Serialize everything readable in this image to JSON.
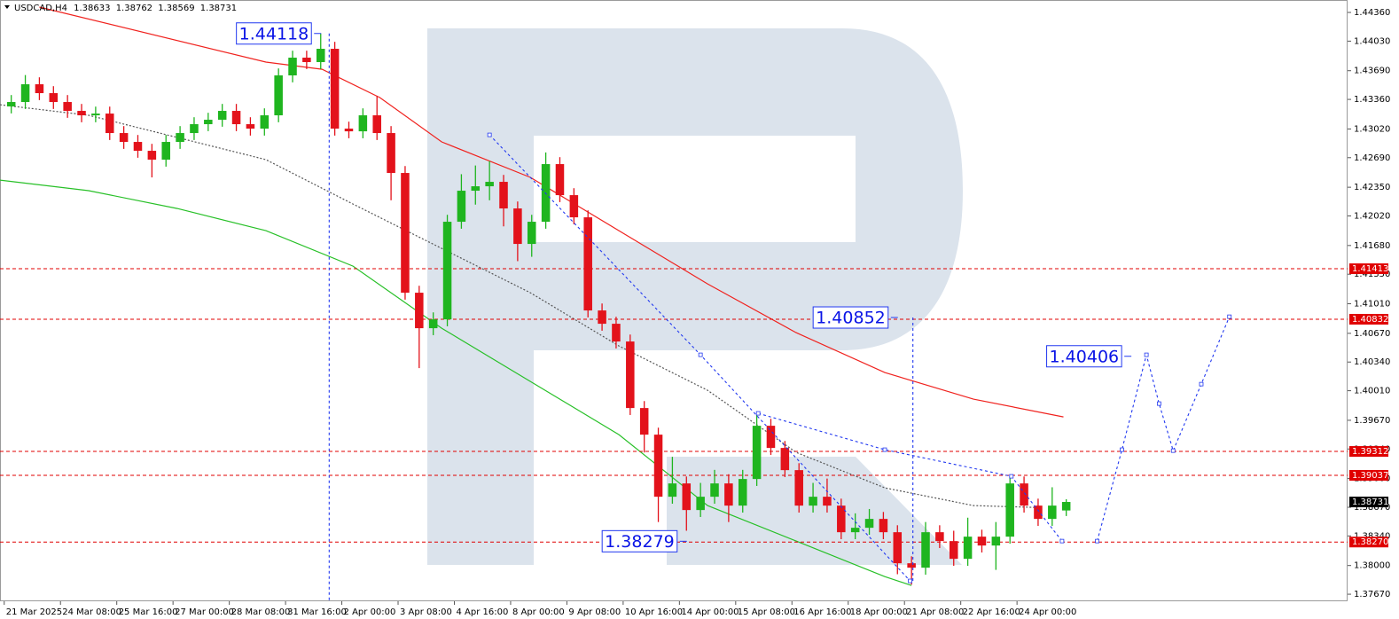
{
  "chart_data": {
    "type": "candlestick",
    "symbol": "USDCAD,H4",
    "header_values": [
      1.38633,
      1.38762,
      1.38569,
      1.38731
    ],
    "up_color": "#1fb51f",
    "down_color": "#e3121b",
    "open": [
      1.43279,
      1.4333,
      1.43534,
      1.43432,
      1.4333,
      1.43228,
      1.43177,
      1.43197,
      1.42973,
      1.42871,
      1.42769,
      1.42667,
      1.42871,
      1.42973,
      1.43075,
      1.43126,
      1.43228,
      1.43075,
      1.43024,
      1.43177,
      1.43636,
      1.4384,
      1.43789,
      1.43942,
      1.43024,
      1.42993,
      1.43177,
      1.42973,
      1.42514,
      1.41137,
      1.40729,
      1.40831,
      1.41953,
      1.4231,
      1.42361,
      1.42412,
      1.42106,
      1.41698,
      1.41953,
      1.42616,
      1.42259,
      1.42004,
      1.40933,
      1.4078,
      1.40576,
      1.39811,
      1.39505,
      1.38791,
      1.38944,
      1.38638,
      1.38791,
      1.38944,
      1.38689,
      1.38995,
      1.39607,
      1.39352,
      1.39097,
      1.38689,
      1.38791,
      1.38689,
      1.38383,
      1.38434,
      1.38536,
      1.38383,
      1.38026,
      1.37975,
      1.38383,
      1.38281,
      1.38077,
      1.38332,
      1.3823,
      1.38332,
      1.38944,
      1.38689,
      1.38536,
      1.38633
    ],
    "high": [
      1.4341,
      1.4364,
      1.43614,
      1.43512,
      1.4341,
      1.43308,
      1.43277,
      1.43277,
      1.43053,
      1.42951,
      1.42849,
      1.42951,
      1.43053,
      1.43155,
      1.43206,
      1.43308,
      1.43308,
      1.43155,
      1.43257,
      1.43716,
      1.4392,
      1.4392,
      1.44118,
      1.44022,
      1.43104,
      1.43257,
      1.434,
      1.43053,
      1.42594,
      1.41217,
      1.40911,
      1.42033,
      1.425,
      1.426,
      1.4265,
      1.42492,
      1.42186,
      1.42033,
      1.4275,
      1.42696,
      1.42339,
      1.42084,
      1.41013,
      1.4086,
      1.40656,
      1.39891,
      1.39585,
      1.3925,
      1.39024,
      1.3895,
      1.391,
      1.3905,
      1.391,
      1.3975,
      1.39687,
      1.39432,
      1.39177,
      1.3895,
      1.39,
      1.38769,
      1.386,
      1.3865,
      1.38616,
      1.38463,
      1.38106,
      1.385,
      1.38463,
      1.384,
      1.3855,
      1.38412,
      1.385,
      1.39037,
      1.39024,
      1.38769,
      1.389,
      1.38762
    ],
    "low": [
      1.43199,
      1.4325,
      1.43352,
      1.4325,
      1.43148,
      1.43097,
      1.43097,
      1.42893,
      1.42791,
      1.42689,
      1.42463,
      1.42587,
      1.42791,
      1.42893,
      1.42995,
      1.43046,
      1.42995,
      1.42944,
      1.42944,
      1.43097,
      1.43556,
      1.43709,
      1.43709,
      1.42944,
      1.42913,
      1.42913,
      1.42893,
      1.422,
      1.41057,
      1.4027,
      1.40649,
      1.40751,
      1.41873,
      1.4215,
      1.422,
      1.419,
      1.415,
      1.4155,
      1.41873,
      1.42179,
      1.41924,
      1.40853,
      1.407,
      1.40496,
      1.39731,
      1.393,
      1.385,
      1.38711,
      1.384,
      1.38558,
      1.38711,
      1.385,
      1.38609,
      1.38915,
      1.39272,
      1.39017,
      1.38609,
      1.38609,
      1.38609,
      1.38303,
      1.38303,
      1.38354,
      1.38303,
      1.379,
      1.3778,
      1.37895,
      1.38201,
      1.37997,
      1.37997,
      1.3815,
      1.3795,
      1.38252,
      1.38609,
      1.38456,
      1.38456,
      1.38569
    ],
    "close": [
      1.4333,
      1.43534,
      1.43432,
      1.4333,
      1.43228,
      1.43177,
      1.43197,
      1.42973,
      1.42871,
      1.42769,
      1.42667,
      1.42871,
      1.42973,
      1.43075,
      1.43126,
      1.43228,
      1.43075,
      1.43024,
      1.43177,
      1.43636,
      1.4384,
      1.43789,
      1.43942,
      1.43024,
      1.42993,
      1.43177,
      1.42973,
      1.42514,
      1.41137,
      1.40729,
      1.40831,
      1.41953,
      1.4231,
      1.42361,
      1.42412,
      1.42106,
      1.41698,
      1.41953,
      1.42616,
      1.42259,
      1.42004,
      1.40933,
      1.4078,
      1.40576,
      1.39811,
      1.39505,
      1.38791,
      1.38944,
      1.38638,
      1.38791,
      1.38944,
      1.38689,
      1.38995,
      1.39607,
      1.39352,
      1.39097,
      1.38689,
      1.38791,
      1.38689,
      1.38383,
      1.38434,
      1.38536,
      1.38383,
      1.38026,
      1.37975,
      1.38383,
      1.38281,
      1.38077,
      1.38332,
      1.3823,
      1.38332,
      1.38944,
      1.38689,
      1.38536,
      1.38689,
      1.38731
    ],
    "xlim": [
      -0.8,
      95
    ],
    "xticks": [
      {
        "value": -0.5,
        "label": "21 Mar 2025"
      },
      {
        "value": 3.5,
        "label": "24 Mar 08:00"
      },
      {
        "value": 7.5,
        "label": "25 Mar 16:00"
      },
      {
        "value": 11.5,
        "label": "27 Mar 00:00"
      },
      {
        "value": 15.5,
        "label": "28 Mar 08:00"
      },
      {
        "value": 19.5,
        "label": "31 Mar 16:00"
      },
      {
        "value": 23.5,
        "label": "2 Apr 00:00"
      },
      {
        "value": 27.5,
        "label": "3 Apr 08:00"
      },
      {
        "value": 31.5,
        "label": "4 Apr 16:00"
      },
      {
        "value": 35.5,
        "label": "8 Apr 00:00"
      },
      {
        "value": 39.5,
        "label": "9 Apr 08:00"
      },
      {
        "value": 43.5,
        "label": "10 Apr 16:00"
      },
      {
        "value": 47.5,
        "label": "14 Apr 00:00"
      },
      {
        "value": 51.5,
        "label": "15 Apr 08:00"
      },
      {
        "value": 55.5,
        "label": "16 Apr 16:00"
      },
      {
        "value": 59.5,
        "label": "18 Apr 00:00"
      },
      {
        "value": 63.5,
        "label": "21 Apr 08:00"
      },
      {
        "value": 67.5,
        "label": "22 Apr 16:00"
      },
      {
        "value": 71.5,
        "label": "24 Apr 00:00"
      }
    ],
    "ylim": [
      1.37589,
      1.44503
    ],
    "yticks": [
      {
        "value": 1.4436,
        "label": "1.44360"
      },
      {
        "value": 1.4403,
        "label": "1.44030"
      },
      {
        "value": 1.4369,
        "label": "1.43690"
      },
      {
        "value": 1.4336,
        "label": "1.43360"
      },
      {
        "value": 1.4302,
        "label": "1.43020"
      },
      {
        "value": 1.4269,
        "label": "1.42690"
      },
      {
        "value": 1.4235,
        "label": "1.42350"
      },
      {
        "value": 1.4202,
        "label": "1.42020"
      },
      {
        "value": 1.4168,
        "label": "1.41680"
      },
      {
        "value": 1.4135,
        "label": "1.41350"
      },
      {
        "value": 1.4101,
        "label": "1.41010"
      },
      {
        "value": 1.4067,
        "label": "1.40670"
      },
      {
        "value": 1.4034,
        "label": "1.40340"
      },
      {
        "value": 1.4001,
        "label": "1.40010"
      },
      {
        "value": 1.3967,
        "label": "1.39670"
      },
      {
        "value": 1.3934,
        "label": "1.39340"
      },
      {
        "value": 1.39,
        "label": "1.39000"
      },
      {
        "value": 1.3867,
        "label": "1.38670"
      },
      {
        "value": 1.3834,
        "label": "1.38340"
      },
      {
        "value": 1.38,
        "label": "1.38000"
      },
      {
        "value": 1.3767,
        "label": "1.37670"
      }
    ],
    "level_color": "#e00000",
    "levels": [
      {
        "value": 1.41413,
        "label": "1.41413"
      },
      {
        "value": 1.40832,
        "label": "1.40832"
      },
      {
        "value": 1.39312,
        "label": "1.39312"
      },
      {
        "value": 1.39037,
        "label": "1.39037"
      },
      {
        "value": 1.3827,
        "label": "1.38270"
      }
    ],
    "last_price": 1.38731,
    "lines": [
      {
        "color": "#f0221e",
        "dashed": false,
        "x": [
          2.0,
          18.1,
          22.1,
          26.2,
          30.6,
          36.9,
          43.2,
          49.5,
          55.8,
          62.1,
          68.4,
          74.8
        ],
        "values": [
          1.44421,
          1.43789,
          1.43707,
          1.43381,
          1.42871,
          1.42463,
          1.41851,
          1.41239,
          1.40678,
          1.40219,
          1.39913,
          1.39709
        ]
      },
      {
        "color": "#28c028",
        "dashed": false,
        "x": [
          -0.8,
          5.5,
          11.8,
          18.1,
          24.3,
          30.6,
          36.9,
          43.2,
          49.5,
          55.8,
          62.1,
          64.0
        ],
        "values": [
          1.42432,
          1.4231,
          1.42106,
          1.41851,
          1.41443,
          1.40729,
          1.40117,
          1.39505,
          1.38689,
          1.38281,
          1.37873,
          1.37771
        ]
      },
      {
        "color": "#555555",
        "dashed": true,
        "x": [
          -0.8,
          5.5,
          11.8,
          18.1,
          24.3,
          30.6,
          36.9,
          43.2,
          49.5,
          55.8,
          62.1,
          68.4,
          72.8
        ],
        "values": [
          1.43299,
          1.43177,
          1.42922,
          1.42667,
          1.42157,
          1.41647,
          1.41137,
          1.40525,
          1.40015,
          1.39301,
          1.38893,
          1.38689,
          1.38668
        ]
      }
    ],
    "forecast_color": "#2138f0",
    "forecast": [
      {
        "x": [
          34.0,
          49.0,
          63.9
        ],
        "values": [
          1.42952,
          1.40423,
          1.37823
        ]
      },
      {
        "x": [
          53.1,
          62.1,
          71.1,
          74.7
        ],
        "values": [
          1.3975,
          1.39332,
          1.39026,
          1.38281
        ]
      },
      {
        "x": [
          77.2,
          78.96,
          80.7,
          81.6,
          82.6,
          84.6,
          86.6
        ],
        "values": [
          1.38281,
          1.39332,
          1.40423,
          1.39862,
          1.39321,
          1.40086,
          1.40861
        ]
      },
      {
        "x": [
          22.6,
          22.6
        ],
        "values": [
          1.44118,
          1.37589
        ]
      },
      {
        "x": [
          64.1,
          64.1
        ],
        "values": [
          1.40852,
          1.37823
        ]
      }
    ],
    "annotations": [
      {
        "x": 21.4,
        "value": 1.44118
      },
      {
        "x": 62.4,
        "value": 1.40852
      },
      {
        "x": 79.0,
        "value": 1.40406
      },
      {
        "x": 47.4,
        "value": 1.38279
      }
    ]
  }
}
